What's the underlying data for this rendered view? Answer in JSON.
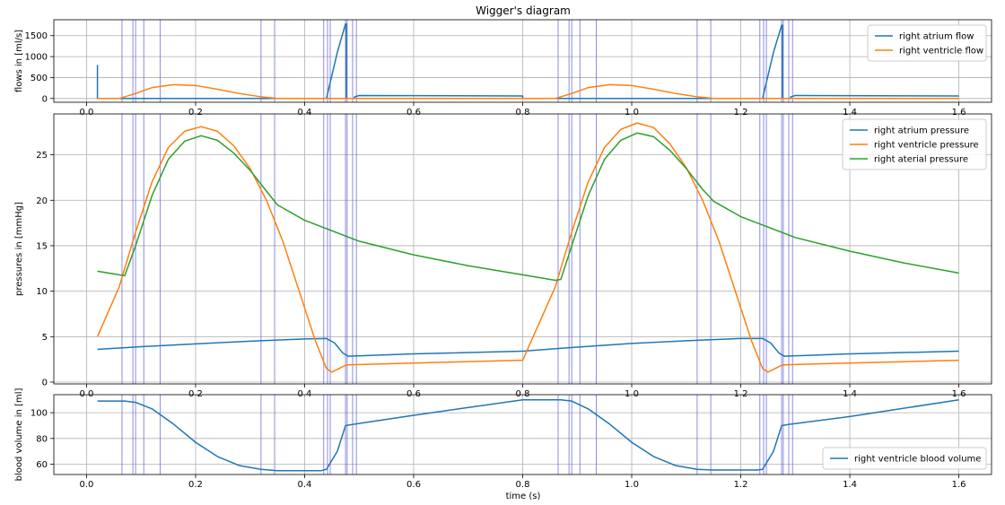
{
  "figure": {
    "title": "Wigger's diagram",
    "xlabel": "time (s)"
  },
  "colors": {
    "blue": "#1f77b4",
    "orange": "#ff7f0e",
    "green": "#2ca02c",
    "event_line": "#6666dd",
    "grid": "#b0b0b0"
  },
  "chart_data": [
    {
      "type": "line",
      "id": "flows",
      "ylabel": "flows in [ml/s]",
      "xlim": [
        -0.06,
        1.66
      ],
      "ylim": [
        -90,
        1880
      ],
      "xticks": [
        0.0,
        0.2,
        0.4,
        0.6,
        0.8,
        1.0,
        1.2,
        1.4,
        1.6
      ],
      "yticks": [
        0,
        500,
        1000,
        1500
      ],
      "grid": true,
      "legend": "top-right",
      "series": [
        {
          "name": "right atrium flow",
          "color": "#1f77b4",
          "x": [
            0.02,
            0.02,
            0.021,
            0.44,
            0.46,
            0.475,
            0.4765,
            0.4765,
            0.49,
            0.492,
            0.5,
            0.8,
            0.8,
            0.88,
            1.24,
            1.26,
            1.275,
            1.2765,
            1.2765,
            1.29,
            1.292,
            1.3,
            1.6
          ],
          "y": [
            800,
            0,
            0,
            0,
            1100,
            1780,
            1780,
            0,
            0,
            40,
            70,
            60,
            0,
            0,
            0,
            1100,
            1750,
            1750,
            0,
            0,
            40,
            70,
            60
          ]
        },
        {
          "name": "right ventricle flow",
          "color": "#ff7f0e",
          "x": [
            0.02,
            0.06,
            0.09,
            0.12,
            0.16,
            0.2,
            0.24,
            0.28,
            0.32,
            0.35,
            0.4,
            0.5,
            0.8,
            0.86,
            0.89,
            0.92,
            0.96,
            1.0,
            1.04,
            1.08,
            1.12,
            1.15,
            1.2,
            1.6
          ],
          "y": [
            0,
            0,
            120,
            260,
            330,
            310,
            220,
            120,
            40,
            0,
            0,
            0,
            0,
            0,
            120,
            260,
            330,
            310,
            220,
            120,
            40,
            0,
            0,
            0
          ]
        }
      ],
      "event_lines_x": [
        0.065,
        0.085,
        0.09,
        0.105,
        0.135,
        0.32,
        0.345,
        0.435,
        0.442,
        0.447,
        0.475,
        0.478,
        0.488,
        0.495,
        0.865,
        0.885,
        0.89,
        0.905,
        0.935,
        1.12,
        1.145,
        1.235,
        1.242,
        1.247,
        1.275,
        1.278,
        1.288,
        1.295
      ]
    },
    {
      "type": "line",
      "id": "pressures",
      "ylabel": "pressures in [mmHg]",
      "xlim": [
        -0.06,
        1.66
      ],
      "ylim": [
        -0.2,
        29.5
      ],
      "xticks": [
        0.0,
        0.2,
        0.4,
        0.6,
        0.8,
        1.0,
        1.2,
        1.4,
        1.6
      ],
      "yticks": [
        0,
        5,
        10,
        15,
        20,
        25
      ],
      "grid": true,
      "legend": "top-right",
      "series": [
        {
          "name": "right atrium pressure",
          "color": "#1f77b4",
          "x": [
            0.02,
            0.1,
            0.2,
            0.3,
            0.4,
            0.44,
            0.455,
            0.47,
            0.48,
            0.6,
            0.8,
            0.9,
            1.0,
            1.1,
            1.2,
            1.24,
            1.255,
            1.27,
            1.28,
            1.4,
            1.6
          ],
          "y": [
            3.6,
            3.9,
            4.2,
            4.5,
            4.75,
            4.8,
            4.3,
            3.2,
            2.85,
            3.1,
            3.4,
            3.85,
            4.25,
            4.55,
            4.8,
            4.8,
            4.3,
            3.2,
            2.85,
            3.1,
            3.4
          ]
        },
        {
          "name": "right ventricle pressure",
          "color": "#ff7f0e",
          "x": [
            0.02,
            0.06,
            0.09,
            0.12,
            0.15,
            0.18,
            0.21,
            0.24,
            0.27,
            0.3,
            0.33,
            0.36,
            0.39,
            0.42,
            0.44,
            0.45,
            0.46,
            0.475,
            0.48,
            0.6,
            0.8,
            0.86,
            0.89,
            0.92,
            0.95,
            0.98,
            1.01,
            1.04,
            1.07,
            1.1,
            1.13,
            1.16,
            1.19,
            1.22,
            1.24,
            1.25,
            1.26,
            1.275,
            1.28,
            1.4,
            1.6
          ],
          "y": [
            5.0,
            10.5,
            16.5,
            22.0,
            25.8,
            27.6,
            28.1,
            27.6,
            26.0,
            23.5,
            20.0,
            15.5,
            10.0,
            4.5,
            1.5,
            1.1,
            1.4,
            1.85,
            1.9,
            2.1,
            2.4,
            10.5,
            16.5,
            22.0,
            25.8,
            27.8,
            28.5,
            28.0,
            26.2,
            23.6,
            20.0,
            15.5,
            10.0,
            4.5,
            1.5,
            1.1,
            1.4,
            1.85,
            1.9,
            2.1,
            2.4
          ]
        },
        {
          "name": "right aterial pressure",
          "color": "#2ca02c",
          "x": [
            0.02,
            0.06,
            0.07,
            0.09,
            0.12,
            0.15,
            0.18,
            0.21,
            0.24,
            0.27,
            0.3,
            0.33,
            0.35,
            0.4,
            0.5,
            0.6,
            0.7,
            0.8,
            0.86,
            0.87,
            0.89,
            0.92,
            0.95,
            0.98,
            1.01,
            1.04,
            1.07,
            1.1,
            1.13,
            1.15,
            1.2,
            1.3,
            1.4,
            1.5,
            1.6
          ],
          "y": [
            12.2,
            11.8,
            11.7,
            15.0,
            20.5,
            24.5,
            26.5,
            27.1,
            26.6,
            25.2,
            23.3,
            21.0,
            19.5,
            17.8,
            15.5,
            14.0,
            12.8,
            11.8,
            11.2,
            11.3,
            15.0,
            20.5,
            24.5,
            26.6,
            27.4,
            27.0,
            25.5,
            23.5,
            21.2,
            19.9,
            18.2,
            15.9,
            14.4,
            13.1,
            12.0
          ]
        }
      ],
      "event_lines_x": [
        0.065,
        0.085,
        0.09,
        0.105,
        0.135,
        0.32,
        0.345,
        0.435,
        0.442,
        0.447,
        0.475,
        0.478,
        0.488,
        0.495,
        0.865,
        0.885,
        0.89,
        0.905,
        0.935,
        1.12,
        1.145,
        1.235,
        1.242,
        1.247,
        1.275,
        1.278,
        1.288,
        1.295
      ]
    },
    {
      "type": "line",
      "id": "volume",
      "ylabel": "blood volume in [ml]",
      "xlim": [
        -0.06,
        1.66
      ],
      "ylim": [
        52,
        114
      ],
      "xticks": [
        0.0,
        0.2,
        0.4,
        0.6,
        0.8,
        1.0,
        1.2,
        1.4,
        1.6
      ],
      "yticks": [
        60,
        80,
        100
      ],
      "grid": true,
      "legend": "bottom-right",
      "series": [
        {
          "name": "right ventricle blood volume",
          "color": "#1f77b4",
          "x": [
            0.02,
            0.07,
            0.09,
            0.12,
            0.16,
            0.2,
            0.24,
            0.28,
            0.32,
            0.35,
            0.43,
            0.44,
            0.46,
            0.475,
            0.49,
            0.6,
            0.8,
            0.87,
            0.89,
            0.92,
            0.96,
            1.0,
            1.04,
            1.08,
            1.12,
            1.15,
            1.23,
            1.24,
            1.26,
            1.275,
            1.29,
            1.4,
            1.6
          ],
          "y": [
            109,
            109,
            108,
            103,
            91,
            77,
            66,
            59,
            56,
            55,
            55,
            56,
            70,
            90,
            91,
            98,
            110,
            110,
            109,
            103,
            91,
            77,
            66,
            59,
            56,
            55.5,
            55.5,
            56,
            70,
            90,
            91,
            97,
            110
          ]
        }
      ],
      "event_lines_x": [
        0.065,
        0.085,
        0.09,
        0.105,
        0.135,
        0.32,
        0.345,
        0.435,
        0.442,
        0.447,
        0.475,
        0.478,
        0.488,
        0.495,
        0.865,
        0.885,
        0.89,
        0.905,
        0.935,
        1.12,
        1.145,
        1.235,
        1.242,
        1.247,
        1.275,
        1.278,
        1.288,
        1.295
      ]
    }
  ]
}
